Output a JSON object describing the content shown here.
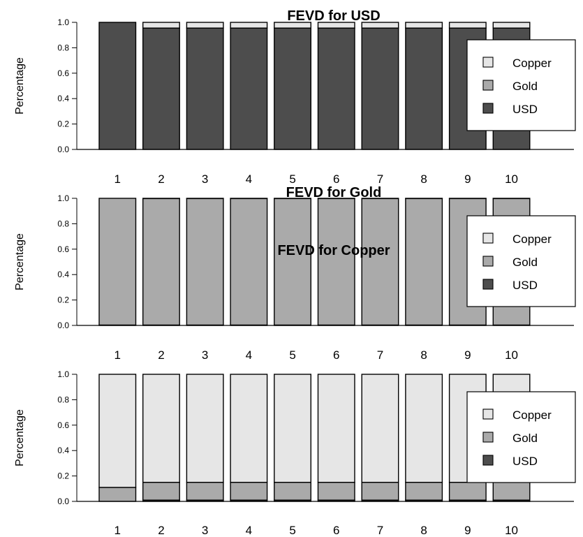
{
  "colors": {
    "Copper": "#e6e6e6",
    "Gold": "#aaaaaa",
    "USD": "#4d4d4d"
  },
  "chart_data": [
    {
      "type": "bar",
      "stacked": true,
      "title": "FEVD for USD",
      "ylabel": "Percentage",
      "ylim": [
        0,
        1
      ],
      "yticks": [
        "0.0",
        "0.2",
        "0.4",
        "0.6",
        "0.8",
        "1.0"
      ],
      "categories": [
        "1",
        "2",
        "3",
        "4",
        "5",
        "6",
        "7",
        "8",
        "9",
        "10"
      ],
      "legend": [
        "Copper",
        "Gold",
        "USD"
      ],
      "legend_position": "right",
      "series": [
        {
          "name": "USD",
          "values": [
            1.0,
            0.955,
            0.955,
            0.955,
            0.955,
            0.955,
            0.955,
            0.955,
            0.955,
            0.955
          ]
        },
        {
          "name": "Gold",
          "values": [
            0.0,
            0.0,
            0.0,
            0.0,
            0.0,
            0.0,
            0.0,
            0.0,
            0.0,
            0.0
          ]
        },
        {
          "name": "Copper",
          "values": [
            0.0,
            0.045,
            0.045,
            0.045,
            0.045,
            0.045,
            0.045,
            0.045,
            0.045,
            0.045
          ]
        }
      ]
    },
    {
      "type": "bar",
      "stacked": true,
      "title": "FEVD for Gold",
      "ylabel": "Percentage",
      "ylim": [
        0,
        1
      ],
      "yticks": [
        "0.0",
        "0.2",
        "0.4",
        "0.6",
        "0.8",
        "1.0"
      ],
      "categories": [
        "1",
        "2",
        "3",
        "4",
        "5",
        "6",
        "7",
        "8",
        "9",
        "10"
      ],
      "legend": [
        "Copper",
        "Gold",
        "USD"
      ],
      "legend_position": "right",
      "series": [
        {
          "name": "USD",
          "values": [
            0.003,
            0.003,
            0.003,
            0.003,
            0.003,
            0.003,
            0.003,
            0.003,
            0.003,
            0.003
          ]
        },
        {
          "name": "Gold",
          "values": [
            0.997,
            0.995,
            0.995,
            0.995,
            0.995,
            0.995,
            0.995,
            0.995,
            0.995,
            0.995
          ]
        },
        {
          "name": "Copper",
          "values": [
            0.0,
            0.002,
            0.002,
            0.002,
            0.002,
            0.002,
            0.002,
            0.002,
            0.002,
            0.002
          ]
        }
      ]
    },
    {
      "type": "bar",
      "stacked": true,
      "title": "FEVD for Copper",
      "ylabel": "Percentage",
      "ylim": [
        0,
        1
      ],
      "yticks": [
        "0.0",
        "0.2",
        "0.4",
        "0.6",
        "0.8",
        "1.0"
      ],
      "categories": [
        "1",
        "2",
        "3",
        "4",
        "5",
        "6",
        "7",
        "8",
        "9",
        "10"
      ],
      "legend": [
        "Copper",
        "Gold",
        "USD"
      ],
      "legend_position": "right",
      "series": [
        {
          "name": "USD",
          "values": [
            0.0,
            0.01,
            0.01,
            0.01,
            0.01,
            0.01,
            0.01,
            0.01,
            0.01,
            0.01
          ]
        },
        {
          "name": "Gold",
          "values": [
            0.11,
            0.14,
            0.14,
            0.14,
            0.14,
            0.14,
            0.14,
            0.14,
            0.14,
            0.14
          ]
        },
        {
          "name": "Copper",
          "values": [
            0.89,
            0.85,
            0.85,
            0.85,
            0.85,
            0.85,
            0.85,
            0.85,
            0.85,
            0.85
          ]
        }
      ]
    }
  ]
}
